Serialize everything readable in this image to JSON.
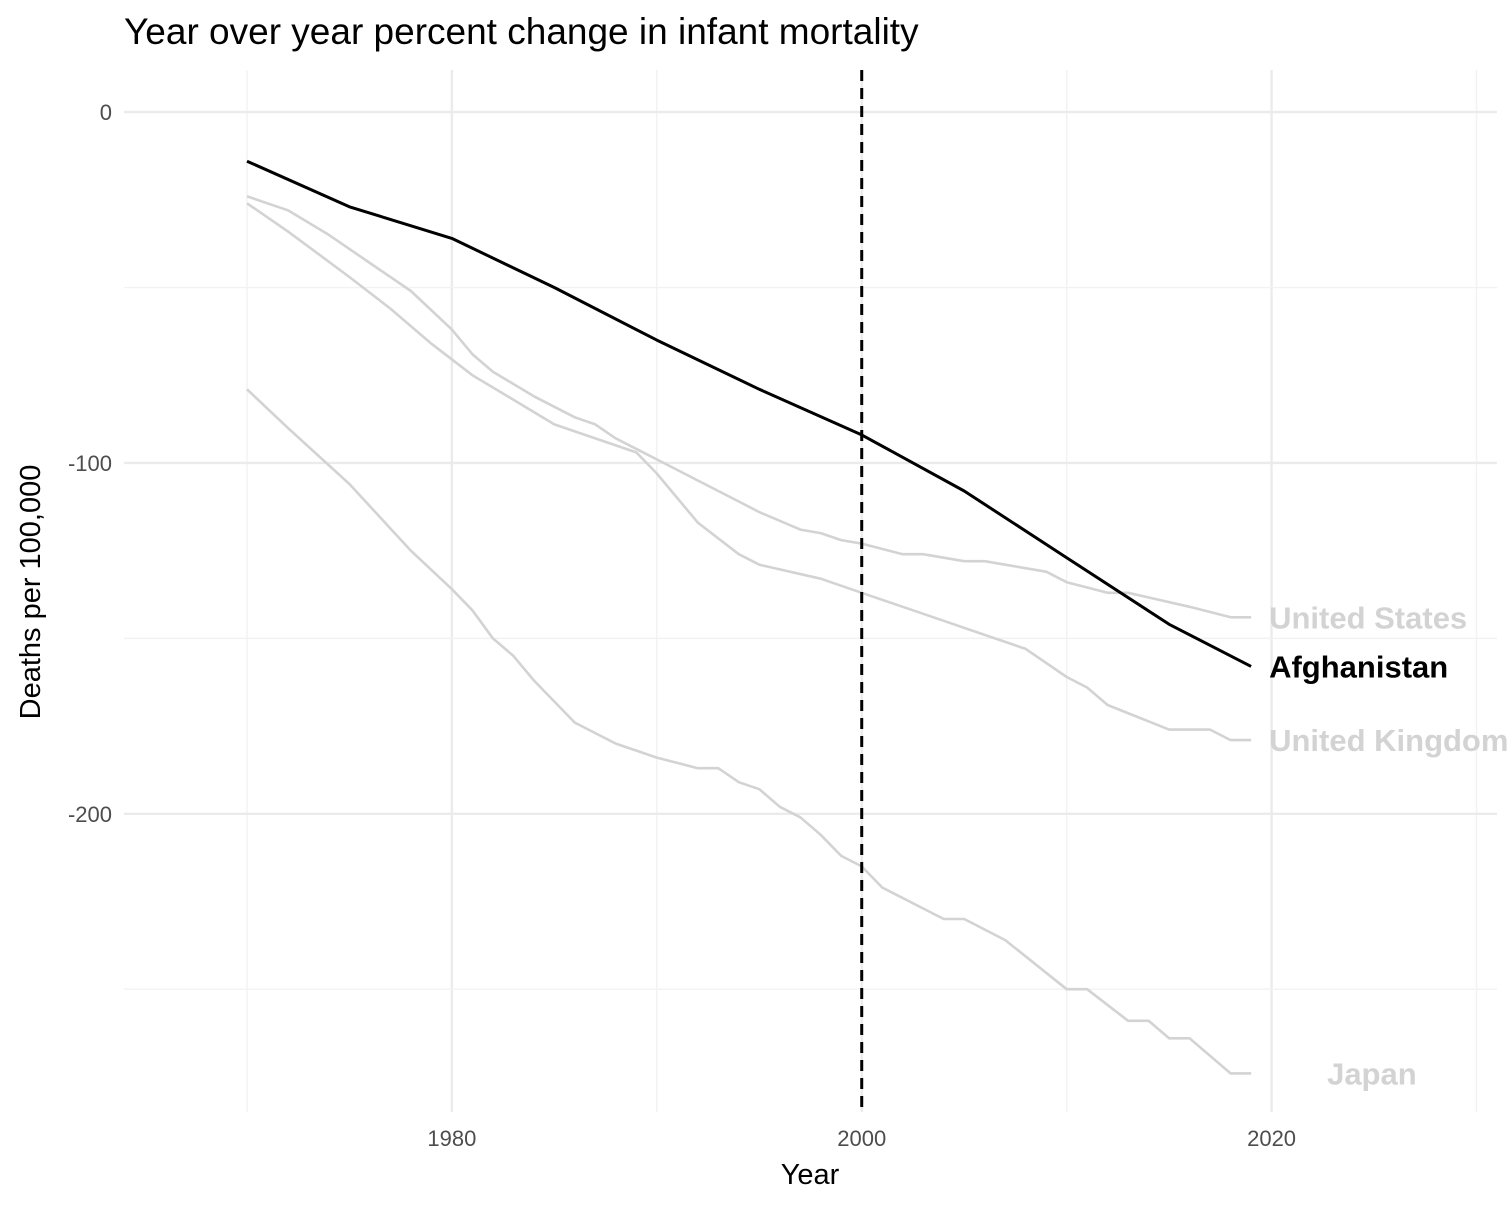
{
  "chart_data": {
    "type": "line",
    "title": "Year over year percent change in infant mortality",
    "xlabel": "Year",
    "ylabel": "Deaths per 100,000",
    "xlim": [
      1964,
      2031
    ],
    "ylim": [
      -285,
      12
    ],
    "x_ticks": [
      1980,
      2000,
      2020
    ],
    "y_ticks": [
      0,
      -100,
      -200
    ],
    "grid": true,
    "vline": {
      "x": 2000,
      "style": "dashed",
      "color": "#000000"
    },
    "highlight_color": "#000000",
    "muted_color": "#d3d3d3",
    "series": [
      {
        "name": "United States",
        "highlight": false,
        "points": [
          [
            1970,
            -24
          ],
          [
            1972,
            -28
          ],
          [
            1974,
            -35
          ],
          [
            1976,
            -43
          ],
          [
            1978,
            -51
          ],
          [
            1980,
            -62
          ],
          [
            1981,
            -69
          ],
          [
            1982,
            -74
          ],
          [
            1984,
            -81
          ],
          [
            1986,
            -87
          ],
          [
            1987,
            -89
          ],
          [
            1988,
            -93
          ],
          [
            1990,
            -99
          ],
          [
            1992,
            -105
          ],
          [
            1994,
            -111
          ],
          [
            1995,
            -114
          ],
          [
            1997,
            -119
          ],
          [
            1998,
            -120
          ],
          [
            1999,
            -122
          ],
          [
            2000,
            -123
          ],
          [
            2002,
            -126
          ],
          [
            2003,
            -126
          ],
          [
            2005,
            -128
          ],
          [
            2006,
            -128
          ],
          [
            2009,
            -131
          ],
          [
            2010,
            -134
          ],
          [
            2012,
            -137
          ],
          [
            2013,
            -137
          ],
          [
            2016,
            -141
          ],
          [
            2018,
            -144
          ],
          [
            2019,
            -144
          ]
        ]
      },
      {
        "name": "United Kingdom",
        "highlight": false,
        "points": [
          [
            1970,
            -26
          ],
          [
            1972,
            -34
          ],
          [
            1975,
            -47
          ],
          [
            1977,
            -56
          ],
          [
            1979,
            -66
          ],
          [
            1981,
            -75
          ],
          [
            1983,
            -82
          ],
          [
            1985,
            -89
          ],
          [
            1987,
            -93
          ],
          [
            1989,
            -97
          ],
          [
            1990,
            -103
          ],
          [
            1992,
            -117
          ],
          [
            1994,
            -126
          ],
          [
            1995,
            -129
          ],
          [
            1998,
            -133
          ],
          [
            2000,
            -137
          ],
          [
            2002,
            -141
          ],
          [
            2004,
            -145
          ],
          [
            2006,
            -149
          ],
          [
            2008,
            -153
          ],
          [
            2010,
            -161
          ],
          [
            2011,
            -164
          ],
          [
            2012,
            -169
          ],
          [
            2015,
            -176
          ],
          [
            2017,
            -176
          ],
          [
            2018,
            -179
          ],
          [
            2019,
            -179
          ]
        ]
      },
      {
        "name": "Japan",
        "highlight": false,
        "points": [
          [
            1970,
            -79
          ],
          [
            1972,
            -90
          ],
          [
            1975,
            -106
          ],
          [
            1978,
            -125
          ],
          [
            1980,
            -136
          ],
          [
            1981,
            -142
          ],
          [
            1982,
            -150
          ],
          [
            1983,
            -155
          ],
          [
            1984,
            -162
          ],
          [
            1986,
            -174
          ],
          [
            1988,
            -180
          ],
          [
            1990,
            -184
          ],
          [
            1992,
            -187
          ],
          [
            1993,
            -187
          ],
          [
            1994,
            -191
          ],
          [
            1995,
            -193
          ],
          [
            1996,
            -198
          ],
          [
            1997,
            -201
          ],
          [
            1998,
            -206
          ],
          [
            1999,
            -212
          ],
          [
            2000,
            -215
          ],
          [
            2001,
            -221
          ],
          [
            2003,
            -227
          ],
          [
            2004,
            -230
          ],
          [
            2005,
            -230
          ],
          [
            2007,
            -236
          ],
          [
            2010,
            -250
          ],
          [
            2011,
            -250
          ],
          [
            2013,
            -259
          ],
          [
            2014,
            -259
          ],
          [
            2015,
            -264
          ],
          [
            2016,
            -264
          ],
          [
            2018,
            -274
          ],
          [
            2019,
            -274
          ]
        ]
      },
      {
        "name": "Afghanistan",
        "highlight": true,
        "points": [
          [
            1970,
            -14
          ],
          [
            1975,
            -27
          ],
          [
            1980,
            -36
          ],
          [
            1985,
            -50
          ],
          [
            1990,
            -65
          ],
          [
            1995,
            -79
          ],
          [
            2000,
            -92
          ],
          [
            2005,
            -108
          ],
          [
            2010,
            -127
          ],
          [
            2015,
            -146
          ],
          [
            2019,
            -158
          ]
        ]
      }
    ]
  }
}
